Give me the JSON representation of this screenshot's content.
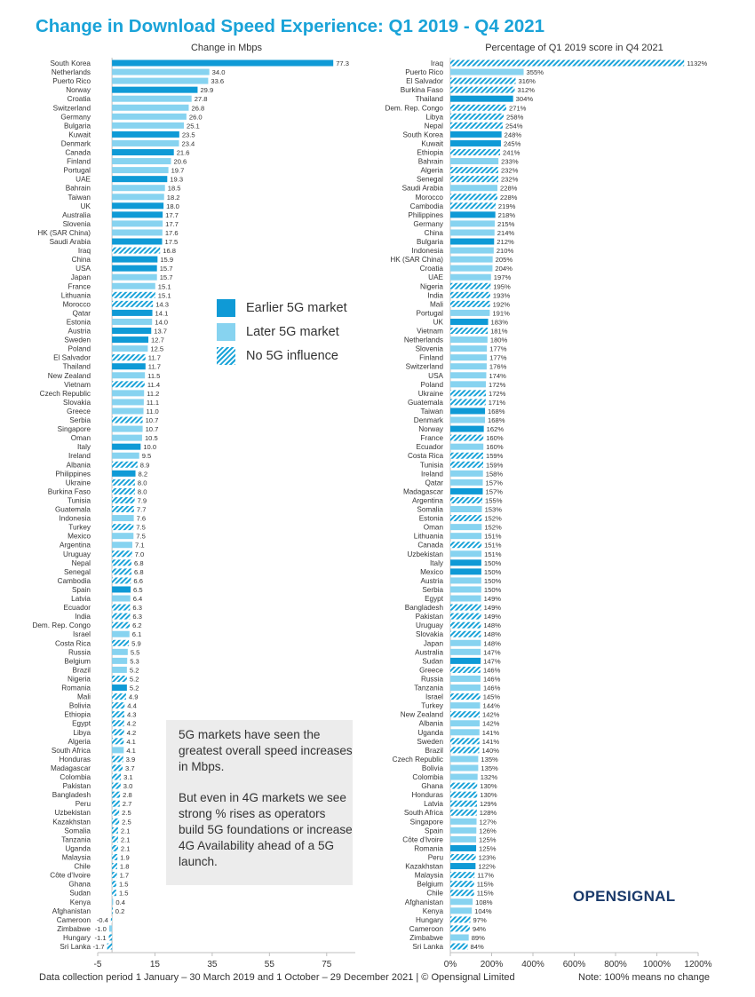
{
  "title": "Change in Download Speed Experience: Q1 2019 - Q4 2021",
  "colors": {
    "earlier": "#0f9ad6",
    "later": "#87d3f0",
    "hatch": "#1aa3d8",
    "title": "#1aa3d8",
    "axis": "#bfbfbf",
    "text": "#333333",
    "brand": "#1a3a6b"
  },
  "legend": {
    "items": [
      {
        "key": "E",
        "label": "Earlier 5G market"
      },
      {
        "key": "L",
        "label": "Later 5G market"
      },
      {
        "key": "N",
        "label": "No 5G influence"
      }
    ]
  },
  "note": {
    "p1": "5G markets have seen the greatest overall speed increases in Mbps.",
    "p2": "But even in 4G markets we see strong % rises as operators build 5G foundations or increase 4G Availability ahead of a 5G launch."
  },
  "footer": {
    "left": "Data collection period 1 January – 30 March 2019 and 1 October – 29 December 2021 | © Opensignal Limited",
    "right": "Note: 100% means no change"
  },
  "brand": "OPENSIGNAL",
  "chart_data": [
    {
      "type": "bar",
      "orientation": "horizontal",
      "title": "Change in Mbps",
      "xlim": [
        -5,
        85
      ],
      "xticks": [
        -5,
        15,
        35,
        55,
        75
      ],
      "xtick_labels": [
        "-5",
        "15",
        "35",
        "55",
        "75"
      ],
      "categories": [
        "South Korea",
        "Netherlands",
        "Puerto Rico",
        "Norway",
        "Croatia",
        "Switzerland",
        "Germany",
        "Bulgaria",
        "Kuwait",
        "Denmark",
        "Canada",
        "Finland",
        "Portugal",
        "UAE",
        "Bahrain",
        "Taiwan",
        "UK",
        "Australia",
        "Slovenia",
        "HK (SAR China)",
        "Saudi Arabia",
        "Iraq",
        "China",
        "USA",
        "Japan",
        "France",
        "Lithuania",
        "Morocco",
        "Qatar",
        "Estonia",
        "Austria",
        "Sweden",
        "Poland",
        "El Salvador",
        "Thailand",
        "New Zealand",
        "Vietnam",
        "Czech Republic",
        "Slovakia",
        "Greece",
        "Serbia",
        "Singapore",
        "Oman",
        "Italy",
        "Ireland",
        "Albania",
        "Philippines",
        "Ukraine",
        "Burkina Faso",
        "Tunisia",
        "Guatemala",
        "Indonesia",
        "Turkey",
        "Mexico",
        "Argentina",
        "Uruguay",
        "Nepal",
        "Senegal",
        "Cambodia",
        "Spain",
        "Latvia",
        "Ecuador",
        "India",
        "Dem. Rep. Congo",
        "Israel",
        "Costa Rica",
        "Russia",
        "Belgium",
        "Brazil",
        "Nigeria",
        "Romania",
        "Mali",
        "Bolivia",
        "Ethiopia",
        "Egypt",
        "Libya",
        "Algeria",
        "South Africa",
        "Honduras",
        "Madagascar",
        "Colombia",
        "Pakistan",
        "Bangladesh",
        "Peru",
        "Uzbekistan",
        "Kazakhstan",
        "Somalia",
        "Tanzania",
        "Uganda",
        "Malaysia",
        "Chile",
        "Côte d'Ivoire",
        "Ghana",
        "Sudan",
        "Kenya",
        "Afghanistan",
        "Cameroon",
        "Zimbabwe",
        "Hungary",
        "Sri Lanka"
      ],
      "values": [
        77.3,
        34.0,
        33.6,
        29.9,
        27.8,
        26.8,
        26.0,
        25.1,
        23.5,
        23.4,
        21.6,
        20.6,
        19.7,
        19.3,
        18.5,
        18.2,
        18.0,
        17.7,
        17.7,
        17.6,
        17.5,
        16.8,
        15.9,
        15.7,
        15.7,
        15.1,
        15.1,
        14.3,
        14.1,
        14.0,
        13.7,
        12.7,
        12.5,
        11.7,
        11.7,
        11.5,
        11.4,
        11.2,
        11.1,
        11.0,
        10.7,
        10.7,
        10.5,
        10.0,
        9.5,
        8.9,
        8.2,
        8.0,
        8.0,
        7.9,
        7.7,
        7.6,
        7.5,
        7.5,
        7.1,
        7.0,
        6.8,
        6.8,
        6.6,
        6.5,
        6.4,
        6.3,
        6.3,
        6.2,
        6.1,
        5.9,
        5.5,
        5.3,
        5.2,
        5.2,
        5.2,
        4.9,
        4.4,
        4.3,
        4.2,
        4.2,
        4.1,
        4.1,
        3.9,
        3.7,
        3.1,
        3.0,
        2.8,
        2.7,
        2.5,
        2.5,
        2.1,
        2.1,
        2.1,
        1.9,
        1.8,
        1.7,
        1.5,
        1.5,
        0.4,
        0.2,
        -0.4,
        -1.0,
        -1.1,
        -1.7
      ],
      "value_labels": [
        "77.3",
        "34.0",
        "33.6",
        "29.9",
        "27.8",
        "26.8",
        "26.0",
        "25.1",
        "23.5",
        "23.4",
        "21.6",
        "20.6",
        "19.7",
        "19.3",
        "18.5",
        "18.2",
        "18.0",
        "17.7",
        "17.7",
        "17.6",
        "17.5",
        "16.8",
        "15.9",
        "15.7",
        "15.7",
        "15.1",
        "15.1",
        "14.3",
        "14.1",
        "14.0",
        "13.7",
        "12.7",
        "12.5",
        "11.7",
        "11.7",
        "11.5",
        "11.4",
        "11.2",
        "11.1",
        "11.0",
        "10.7",
        "10.7",
        "10.5",
        "10.0",
        "9.5",
        "8.9",
        "8.2",
        "8.0",
        "8.0",
        "7.9",
        "7.7",
        "7.6",
        "7.5",
        "7.5",
        "7.1",
        "7.0",
        "6.8",
        "6.8",
        "6.6",
        "6.5",
        "6.4",
        "6.3",
        "6.3",
        "6.2",
        "6.1",
        "5.9",
        "5.5",
        "5.3",
        "5.2",
        "5.2",
        "5.2",
        "4.9",
        "4.4",
        "4.3",
        "4.2",
        "4.2",
        "4.1",
        "4.1",
        "3.9",
        "3.7",
        "3.1",
        "3.0",
        "2.8",
        "2.7",
        "2.5",
        "2.5",
        "2.1",
        "2.1",
        "2.1",
        "1.9",
        "1.8",
        "1.7",
        "1.5",
        "1.5",
        "0.4",
        "0.2",
        "-0.4",
        "-1.0",
        "-1.1",
        "-1.7"
      ],
      "status": "ELLELLLLELELLELLEELLENEELLNNELEELNELNLLLNLLELNENNNNLNLLNNNNELNNNLNLLLNENNNNNNLNNNNNNNNNNNNNNNNLNNLN"
    },
    {
      "type": "bar",
      "orientation": "horizontal",
      "title": "Percentage of Q1 2019 score in Q4 2021",
      "xlim": [
        0,
        1200
      ],
      "xticks": [
        0,
        200,
        400,
        600,
        800,
        1000,
        1200
      ],
      "xtick_labels": [
        "0%",
        "200%",
        "400%",
        "600%",
        "800%",
        "1000%",
        "1200%"
      ],
      "categories": [
        "Iraq",
        "Puerto Rico",
        "El Salvador",
        "Burkina Faso",
        "Thailand",
        "Dem. Rep. Congo",
        "Libya",
        "Nepal",
        "South Korea",
        "Kuwait",
        "Ethiopia",
        "Bahrain",
        "Algeria",
        "Senegal",
        "Saudi Arabia",
        "Morocco",
        "Cambodia",
        "Philippines",
        "Germany",
        "China",
        "Bulgaria",
        "Indonesia",
        "HK (SAR China)",
        "Croatia",
        "UAE",
        "Nigeria",
        "India",
        "Mali",
        "Portugal",
        "UK",
        "Vietnam",
        "Netherlands",
        "Slovenia",
        "Finland",
        "Switzerland",
        "USA",
        "Poland",
        "Ukraine",
        "Guatemala",
        "Taiwan",
        "Denmark",
        "Norway",
        "France",
        "Ecuador",
        "Costa Rica",
        "Tunisia",
        "Ireland",
        "Qatar",
        "Madagascar",
        "Argentina",
        "Somalia",
        "Estonia",
        "Oman",
        "Lithuania",
        "Canada",
        "Uzbekistan",
        "Italy",
        "Mexico",
        "Austria",
        "Serbia",
        "Egypt",
        "Bangladesh",
        "Pakistan",
        "Uruguay",
        "Slovakia",
        "Japan",
        "Australia",
        "Sudan",
        "Greece",
        "Russia",
        "Tanzania",
        "Israel",
        "Turkey",
        "New Zealand",
        "Albania",
        "Uganda",
        "Sweden",
        "Brazil",
        "Czech Republic",
        "Bolivia",
        "Colombia",
        "Ghana",
        "Honduras",
        "Latvia",
        "South Africa",
        "Singapore",
        "Spain",
        "Côte d'Ivoire",
        "Romania",
        "Peru",
        "Kazakhstan",
        "Malaysia",
        "Belgium",
        "Chile",
        "Afghanistan",
        "Kenya",
        "Hungary",
        "Cameroon",
        "Zimbabwe",
        "Sri Lanka"
      ],
      "values": [
        1132,
        355,
        316,
        312,
        304,
        271,
        258,
        254,
        248,
        245,
        241,
        233,
        232,
        232,
        228,
        228,
        219,
        218,
        215,
        214,
        212,
        210,
        205,
        204,
        197,
        195,
        193,
        192,
        191,
        183,
        181,
        180,
        177,
        177,
        176,
        174,
        172,
        172,
        171,
        168,
        168,
        162,
        160,
        160,
        159,
        159,
        158,
        157,
        157,
        155,
        153,
        152,
        152,
        151,
        151,
        151,
        150,
        150,
        150,
        150,
        149,
        149,
        149,
        148,
        148,
        148,
        147,
        147,
        146,
        146,
        146,
        145,
        144,
        142,
        142,
        141,
        141,
        140,
        135,
        135,
        132,
        130,
        130,
        129,
        128,
        127,
        126,
        125,
        125,
        123,
        122,
        117,
        115,
        115,
        108,
        104,
        97,
        94,
        89,
        84
      ],
      "value_labels": [
        "1132%",
        "355%",
        "316%",
        "312%",
        "304%",
        "271%",
        "258%",
        "254%",
        "248%",
        "245%",
        "241%",
        "233%",
        "232%",
        "232%",
        "228%",
        "228%",
        "219%",
        "218%",
        "215%",
        "214%",
        "212%",
        "210%",
        "205%",
        "204%",
        "197%",
        "195%",
        "193%",
        "192%",
        "191%",
        "183%",
        "181%",
        "180%",
        "177%",
        "177%",
        "176%",
        "174%",
        "172%",
        "172%",
        "171%",
        "168%",
        "168%",
        "162%",
        "160%",
        "160%",
        "159%",
        "159%",
        "158%",
        "157%",
        "157%",
        "155%",
        "153%",
        "152%",
        "152%",
        "151%",
        "151%",
        "151%",
        "150%",
        "150%",
        "150%",
        "150%",
        "149%",
        "149%",
        "149%",
        "148%",
        "148%",
        "148%",
        "147%",
        "147%",
        "146%",
        "146%",
        "146%",
        "145%",
        "144%",
        "142%",
        "142%",
        "141%",
        "141%",
        "140%",
        "135%",
        "135%",
        "132%",
        "130%",
        "130%",
        "129%",
        "128%",
        "127%",
        "126%",
        "125%",
        "125%",
        "123%",
        "122%",
        "117%",
        "115%",
        "115%",
        "108%",
        "104%",
        "97%",
        "94%",
        "89%",
        "84%"
      ],
      "status": "NLNNENNNEENLNNLNNELLELLLLNNNLENLLLLLLNNELENLNNLLENLNLLNLEELLLNNNNLLENLLNLNLLNNLLLNNNNLLLENENNNLLNNLNNN"
    }
  ]
}
